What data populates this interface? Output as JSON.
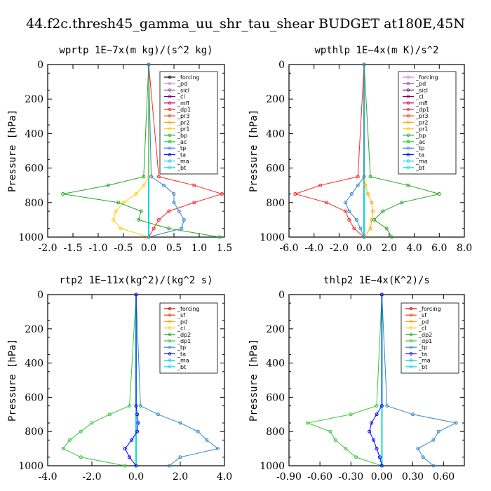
{
  "figure_title": "44.f2c.thresh45_gamma_uu_shr_tau_shear  BUDGET at180E,45N",
  "chart_data": [
    {
      "type": "line",
      "title": "wprtp  1E−7x(m kg)/(s^2 kg)",
      "ylabel": "Pressure [hPa]",
      "ylim": [
        1000,
        0
      ],
      "xlim": [
        -2.0,
        1.5
      ],
      "xticks": [
        "-2.0",
        "-1.5",
        "-1.0",
        "-0.5",
        "0.0",
        "0.5",
        "1.0",
        "1.5"
      ],
      "xtick_values": [
        -2.0,
        -1.5,
        -1.0,
        -0.5,
        0.0,
        0.5,
        1.0,
        1.5
      ],
      "yticks": [
        "0",
        "200",
        "400",
        "600",
        "800",
        "1000"
      ],
      "pressure": [
        0,
        650,
        700,
        750,
        800,
        850,
        900,
        950,
        1000
      ],
      "series": [
        {
          "name": "_forcing",
          "color": "#000000",
          "values": [
            0,
            0,
            0,
            0,
            0,
            0,
            0,
            0,
            0
          ]
        },
        {
          "name": "_pd",
          "color": "#cc88cc",
          "values": [
            0,
            0,
            0,
            0,
            0,
            0,
            0,
            0,
            0
          ]
        },
        {
          "name": "_sicl",
          "color": "#8844aa",
          "values": [
            0,
            0,
            0,
            0,
            0,
            0,
            0,
            0,
            0
          ]
        },
        {
          "name": "_cl",
          "color": "#660099",
          "values": [
            0,
            0,
            0,
            0,
            0,
            0,
            0,
            0,
            0
          ]
        },
        {
          "name": "_mfl",
          "color": "#cc0066",
          "values": [
            0,
            0,
            0,
            0,
            0,
            0,
            0,
            0,
            0
          ]
        },
        {
          "name": "_dp1",
          "color": "#ff2222",
          "values": [
            0,
            0.2,
            0.9,
            1.45,
            0.9,
            0.4,
            0.2,
            0.1,
            0
          ]
        },
        {
          "name": "_pr3",
          "color": "#ff3300",
          "values": [
            0,
            0,
            0,
            0,
            0,
            0,
            0,
            0,
            0
          ]
        },
        {
          "name": "_pr2",
          "color": "#ffaa00",
          "values": [
            0,
            0,
            0,
            0,
            0,
            0,
            0,
            0,
            0
          ]
        },
        {
          "name": "_pr1",
          "color": "#ffcc00",
          "values": [
            0,
            0,
            -0.1,
            -0.25,
            -0.5,
            -0.65,
            -0.7,
            -0.55,
            0
          ]
        },
        {
          "name": "_bp",
          "color": "#22aa22",
          "values": [
            0,
            -0.1,
            -0.8,
            -1.7,
            -0.6,
            -0.15,
            -0.2,
            0.4,
            1.4
          ]
        },
        {
          "name": "_ac",
          "color": "#00cc00",
          "values": [
            0,
            0,
            0,
            0,
            0,
            0,
            0,
            0,
            0
          ]
        },
        {
          "name": "_tp",
          "color": "#3388cc",
          "values": [
            0,
            0.05,
            0.3,
            0.5,
            0.5,
            0.6,
            0.7,
            0.65,
            0
          ]
        },
        {
          "name": "_ta",
          "color": "#0000ff",
          "values": [
            0,
            0,
            0,
            0,
            0,
            0,
            0,
            0,
            0
          ]
        },
        {
          "name": "_ma",
          "color": "#00ccff",
          "values": [
            0,
            0,
            0,
            0,
            0,
            0,
            0,
            0,
            0
          ]
        },
        {
          "name": "_bt",
          "color": "#00e5e5",
          "values": [
            0,
            0,
            0,
            0,
            0,
            0,
            0,
            0,
            0
          ]
        }
      ]
    },
    {
      "type": "line",
      "title": "wpthlp  1E−4x(m K)/s^2",
      "ylabel": "Pressure [hPa]",
      "ylim": [
        1000,
        0
      ],
      "xlim": [
        -6.0,
        8.0
      ],
      "xticks": [
        "-6.0",
        "-4.0",
        "-2.0",
        "0.0",
        "2.0",
        "4.0",
        "6.0",
        "8.0"
      ],
      "xtick_values": [
        -6.0,
        -4.0,
        -2.0,
        0.0,
        2.0,
        4.0,
        6.0,
        8.0
      ],
      "yticks": [
        "0",
        "200",
        "400",
        "600",
        "800",
        "1000"
      ],
      "pressure": [
        0,
        650,
        700,
        750,
        800,
        850,
        900,
        950,
        1000
      ],
      "series": [
        {
          "name": "_forcing",
          "color": "#cc88cc",
          "values": [
            0,
            0,
            0,
            0,
            0,
            0,
            0,
            0,
            0
          ]
        },
        {
          "name": "_pd",
          "color": "#8844aa",
          "values": [
            0,
            0,
            0,
            0,
            0,
            0,
            0,
            0,
            0
          ]
        },
        {
          "name": "_sicl",
          "color": "#660099",
          "values": [
            0,
            0,
            0,
            0,
            0,
            0,
            0,
            0,
            0
          ]
        },
        {
          "name": "_cl",
          "color": "#880044",
          "values": [
            0,
            0,
            0,
            0,
            0,
            0,
            0,
            0,
            0
          ]
        },
        {
          "name": "_mfl",
          "color": "#cc0066",
          "values": [
            0,
            0,
            0,
            0,
            0,
            0,
            0,
            0,
            0
          ]
        },
        {
          "name": "_dp1",
          "color": "#ff2222",
          "values": [
            0,
            -0.5,
            -3.5,
            -5.5,
            -3.0,
            -1.5,
            -1.2,
            -0.8,
            0
          ]
        },
        {
          "name": "_pr3",
          "color": "#ff3300",
          "values": [
            0,
            0,
            0,
            0,
            0,
            0,
            0,
            0,
            0
          ]
        },
        {
          "name": "_pr2",
          "color": "#ffaa00",
          "values": [
            0,
            0,
            0.1,
            0.3,
            0.6,
            0.7,
            0.6,
            0.5,
            0
          ]
        },
        {
          "name": "_pr1",
          "color": "#ffcc00",
          "values": [
            0,
            0,
            0,
            0,
            0,
            0,
            0,
            0,
            0
          ]
        },
        {
          "name": "_bp",
          "color": "#22aa22",
          "values": [
            0,
            0.5,
            3.5,
            6.0,
            3.0,
            1.5,
            0.8,
            1.8,
            2.2
          ]
        },
        {
          "name": "_ac",
          "color": "#00cc00",
          "values": [
            0,
            0,
            0,
            0,
            0,
            0,
            0,
            0,
            0
          ]
        },
        {
          "name": "_tp",
          "color": "#3388cc",
          "values": [
            0,
            0,
            -0.5,
            -1.0,
            -1.5,
            -1.2,
            -0.6,
            -0.3,
            0
          ]
        },
        {
          "name": "_ta",
          "color": "#0000ff",
          "values": [
            0,
            0,
            0,
            0,
            0,
            0,
            0,
            0,
            0
          ]
        },
        {
          "name": "_ma",
          "color": "#00ccff",
          "values": [
            0,
            0,
            0,
            0,
            0,
            0,
            0,
            0,
            0
          ]
        },
        {
          "name": "_bt",
          "color": "#00e5e5",
          "values": [
            0,
            0,
            0,
            0,
            0,
            0,
            0,
            0,
            0
          ]
        }
      ]
    },
    {
      "type": "line",
      "title": "rtp2  1E−11x(kg^2)/(kg^2 s)",
      "ylabel": "Pressure [hPa]",
      "ylim": [
        1000,
        0
      ],
      "xlim": [
        -4.0,
        4.0
      ],
      "xticks": [
        "-4.0",
        "-2.0",
        "0.0",
        "2.0",
        "4.0"
      ],
      "xtick_values": [
        -4.0,
        -2.0,
        0.0,
        2.0,
        4.0
      ],
      "yticks": [
        "0",
        "200",
        "400",
        "600",
        "800",
        "1000"
      ],
      "pressure": [
        0,
        650,
        700,
        750,
        800,
        850,
        900,
        950,
        1000
      ],
      "series": [
        {
          "name": "_forcing",
          "color": "#cc0000",
          "values": [
            0,
            0,
            0,
            0,
            0,
            0,
            0,
            0,
            0
          ]
        },
        {
          "name": "_sf",
          "color": "#ff3300",
          "values": [
            0,
            0,
            0,
            0,
            0,
            0,
            0,
            0,
            0
          ]
        },
        {
          "name": "_pd",
          "color": "#ffaa00",
          "values": [
            0,
            0,
            0,
            0,
            0,
            0,
            0,
            0,
            0
          ]
        },
        {
          "name": "_cl",
          "color": "#ffcc00",
          "values": [
            0,
            0,
            0,
            0,
            0,
            0,
            0,
            0,
            0
          ]
        },
        {
          "name": "_dp2",
          "color": "#22aa22",
          "values": [
            0,
            0,
            0,
            0,
            0,
            0,
            0,
            0,
            0
          ]
        },
        {
          "name": "_dp1",
          "color": "#33cc33",
          "values": [
            0,
            -0.3,
            -1.2,
            -2.0,
            -2.5,
            -3.0,
            -3.3,
            -2.5,
            -0.5
          ]
        },
        {
          "name": "_tp",
          "color": "#3388cc",
          "values": [
            0,
            0.2,
            1.0,
            2.0,
            2.8,
            3.2,
            3.7,
            2.0,
            1.5
          ]
        },
        {
          "name": "_ta",
          "color": "#0000ff",
          "values": [
            0,
            0,
            0.05,
            0.1,
            0.05,
            -0.2,
            -0.5,
            -0.3,
            0
          ]
        },
        {
          "name": "_ma",
          "color": "#00ccff",
          "values": [
            0,
            0,
            0,
            0,
            0,
            0,
            0,
            0,
            0
          ]
        },
        {
          "name": "_bt",
          "color": "#00e5e5",
          "values": [
            0,
            0,
            0,
            0,
            0,
            0,
            0,
            0,
            0
          ]
        }
      ]
    },
    {
      "type": "line",
      "title": "thlp2  1E−4x(K^2)/s",
      "ylabel": "Pressure [hPa]",
      "ylim": [
        1000,
        0
      ],
      "xlim": [
        -0.9,
        0.8
      ],
      "xticks": [
        "-0.90",
        "-0.60",
        "-0.30",
        "0.00",
        "0.30",
        "0.60"
      ],
      "xtick_values": [
        -0.9,
        -0.6,
        -0.3,
        0.0,
        0.3,
        0.6
      ],
      "yticks": [
        "0",
        "200",
        "400",
        "600",
        "800",
        "1000"
      ],
      "pressure": [
        0,
        650,
        700,
        750,
        800,
        850,
        900,
        950,
        1000
      ],
      "series": [
        {
          "name": "_forcing",
          "color": "#cc0000",
          "values": [
            0,
            0,
            0,
            0,
            0,
            0,
            0,
            0,
            0
          ]
        },
        {
          "name": "_sf",
          "color": "#ff3300",
          "values": [
            0,
            0,
            0,
            0,
            0,
            0,
            0,
            0,
            0
          ]
        },
        {
          "name": "_pd",
          "color": "#ffaa00",
          "values": [
            0,
            0,
            0,
            0,
            0,
            0,
            0,
            0,
            0
          ]
        },
        {
          "name": "_cl",
          "color": "#ffcc00",
          "values": [
            0,
            0,
            0,
            0,
            0,
            0,
            0,
            0,
            0
          ]
        },
        {
          "name": "_dp2",
          "color": "#22aa22",
          "values": [
            0,
            0,
            0,
            0,
            0,
            0,
            0,
            0,
            0
          ]
        },
        {
          "name": "_dp1",
          "color": "#33cc33",
          "values": [
            0,
            -0.05,
            -0.3,
            -0.72,
            -0.5,
            -0.45,
            -0.35,
            -0.25,
            0
          ]
        },
        {
          "name": "_tp",
          "color": "#3388cc",
          "values": [
            0,
            0.05,
            0.3,
            0.72,
            0.55,
            0.5,
            0.35,
            0.4,
            0.5
          ]
        },
        {
          "name": "_ta",
          "color": "#0000ff",
          "values": [
            0,
            0,
            -0.05,
            -0.1,
            -0.12,
            -0.08,
            -0.05,
            -0.02,
            0
          ]
        },
        {
          "name": "_ma",
          "color": "#00ccff",
          "values": [
            0,
            0,
            0,
            0,
            0,
            0,
            0,
            0,
            0
          ]
        },
        {
          "name": "_bt",
          "color": "#00e5e5",
          "values": [
            0,
            0,
            0,
            0,
            0,
            0,
            0,
            0,
            0
          ]
        }
      ]
    }
  ]
}
